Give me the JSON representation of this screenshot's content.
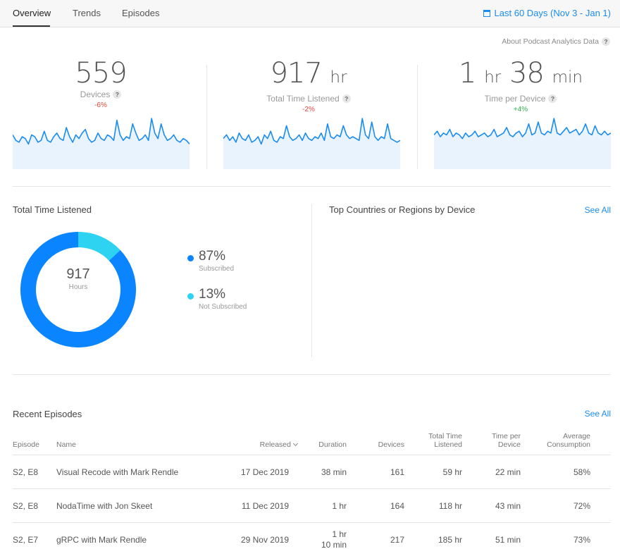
{
  "nav": {
    "tabs": [
      {
        "label": "Overview",
        "active": true
      },
      {
        "label": "Trends",
        "active": false
      },
      {
        "label": "Episodes",
        "active": false
      }
    ],
    "date_range": "Last 60 Days (Nov 3 - Jan 1)",
    "date_icon": "calendar-icon"
  },
  "about_label": "About Podcast Analytics Data",
  "kpis": [
    {
      "value": "559",
      "unit": "",
      "label": "Devices",
      "delta": "-6%",
      "trend": "neg",
      "spark": [
        0.55,
        0.4,
        0.35,
        0.5,
        0.45,
        0.3,
        0.55,
        0.5,
        0.35,
        0.4,
        0.65,
        0.4,
        0.35,
        0.5,
        0.6,
        0.45,
        0.4,
        0.75,
        0.5,
        0.35,
        0.55,
        0.45,
        0.6,
        0.7,
        0.45,
        0.35,
        0.4,
        0.6,
        0.45,
        0.4,
        0.55,
        0.5,
        0.4,
        0.95,
        0.55,
        0.4,
        0.5,
        0.45,
        0.85,
        0.6,
        0.4,
        0.45,
        0.55,
        0.4,
        1.0,
        0.6,
        0.45,
        0.85,
        0.55,
        0.4,
        0.45,
        0.55,
        0.4,
        0.35,
        0.45,
        0.4,
        0.3
      ]
    },
    {
      "value": "917",
      "unit": "hr",
      "label": "Total Time Listened",
      "delta": "-2%",
      "trend": "neg",
      "spark": [
        0.45,
        0.55,
        0.4,
        0.5,
        0.35,
        0.6,
        0.45,
        0.4,
        0.55,
        0.35,
        0.4,
        0.5,
        0.3,
        0.55,
        0.45,
        0.65,
        0.4,
        0.35,
        0.5,
        0.45,
        0.8,
        0.5,
        0.4,
        0.45,
        0.55,
        0.4,
        0.6,
        0.45,
        0.4,
        0.5,
        0.45,
        0.6,
        0.4,
        0.85,
        0.5,
        0.45,
        0.55,
        0.5,
        0.8,
        0.55,
        0.45,
        0.5,
        0.45,
        0.4,
        1.0,
        0.55,
        0.45,
        0.9,
        0.5,
        0.4,
        0.5,
        0.45,
        0.85,
        0.45,
        0.4,
        0.35,
        0.4
      ]
    },
    {
      "value": "1",
      "unit": "hr",
      "value2": "38",
      "unit2": "min",
      "label": "Time per Device",
      "delta": "+4%",
      "trend": "pos",
      "spark": [
        0.55,
        0.65,
        0.5,
        0.6,
        0.55,
        0.7,
        0.5,
        0.6,
        0.55,
        0.45,
        0.6,
        0.5,
        0.55,
        0.65,
        0.5,
        0.55,
        0.6,
        0.5,
        0.55,
        0.7,
        0.5,
        0.55,
        0.6,
        0.75,
        0.55,
        0.5,
        0.6,
        0.65,
        0.5,
        0.6,
        0.85,
        0.55,
        0.6,
        0.9,
        0.6,
        0.55,
        0.65,
        0.6,
        1.0,
        0.6,
        0.55,
        0.65,
        0.75,
        0.6,
        0.65,
        0.7,
        0.55,
        0.65,
        0.85,
        0.6,
        0.55,
        0.8,
        0.6,
        0.55,
        0.65,
        0.55,
        0.6
      ]
    }
  ],
  "total_time": {
    "title": "Total Time Listened",
    "value": "917",
    "unit": "Hours",
    "segments": [
      {
        "pct": "87%",
        "label": "Subscribed",
        "fraction": 0.87,
        "color": "#0a84ff"
      },
      {
        "pct": "13%",
        "label": "Not Subscribed",
        "fraction": 0.13,
        "color": "#2ed3f2"
      }
    ]
  },
  "top_countries": {
    "title": "Top Countries or Regions by Device",
    "see_all": "See All"
  },
  "recent": {
    "title": "Recent Episodes",
    "see_all": "See All",
    "columns": {
      "episode": "Episode",
      "name": "Name",
      "released": "Released",
      "duration": "Duration",
      "devices": "Devices",
      "total_time_1": "Total Time",
      "total_time_2": "Listened",
      "time_per_1": "Time per",
      "time_per_2": "Device",
      "avg_1": "Average",
      "avg_2": "Consumption"
    },
    "rows": [
      {
        "episode": "S2, E8",
        "name": "Visual Recode with Mark Rendle",
        "released": "17 Dec 2019",
        "duration": "38 min",
        "duration2": "",
        "devices": "161",
        "total": "59 hr",
        "per": "22 min",
        "avg": "58%"
      },
      {
        "episode": "S2, E8",
        "name": "NodaTime with Jon Skeet",
        "released": "11 Dec 2019",
        "duration": "1 hr",
        "duration2": "",
        "devices": "164",
        "total": "118 hr",
        "per": "43 min",
        "avg": "72%"
      },
      {
        "episode": "S2, E7",
        "name": "gRPC with Mark Rendle",
        "released": "29 Nov 2019",
        "duration": "1 hr",
        "duration2": "10 min",
        "devices": "217",
        "total": "185 hr",
        "per": "51 min",
        "avg": "73%"
      }
    ]
  }
}
